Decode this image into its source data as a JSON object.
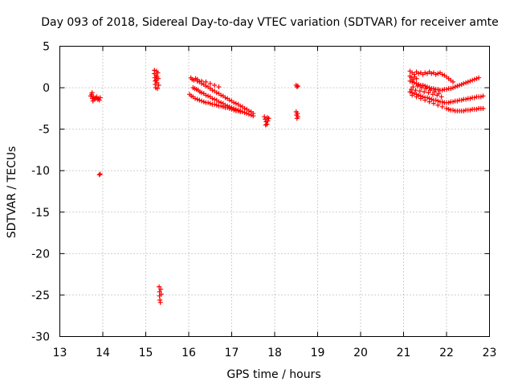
{
  "chart_data": {
    "type": "scatter",
    "title": "Day 093 of 2018, Sidereal Day-to-day VTEC variation (SDTVAR) for receiver amte",
    "xlabel": "GPS time / hours",
    "ylabel": "SDTVAR / TECUs",
    "xlim": [
      13,
      23
    ],
    "ylim": [
      -30,
      5
    ],
    "xticks": [
      "13",
      "14",
      "15",
      "16",
      "17",
      "18",
      "19",
      "20",
      "21",
      "22",
      "23"
    ],
    "yticks": [
      "5",
      "0",
      "-5",
      "-10",
      "-15",
      "-20",
      "-25",
      "-30"
    ],
    "grid": true,
    "marker": "plus",
    "color": "#ff0000",
    "series": [
      {
        "name": "SDTVAR",
        "points": [
          [
            13.72,
            -1.0
          ],
          [
            13.74,
            -0.8
          ],
          [
            13.76,
            -1.3
          ],
          [
            13.78,
            -1.1
          ],
          [
            13.8,
            -1.4
          ],
          [
            13.82,
            -1.2
          ],
          [
            13.84,
            -1.3
          ],
          [
            13.86,
            -1.1
          ],
          [
            13.88,
            -1.4
          ],
          [
            13.9,
            -1.3
          ],
          [
            13.92,
            -1.5
          ],
          [
            13.94,
            -1.2
          ],
          [
            13.75,
            -0.6
          ],
          [
            13.77,
            -1.6
          ],
          [
            13.92,
            -10.5
          ],
          [
            13.94,
            -10.4
          ],
          [
            15.2,
            2.1
          ],
          [
            15.2,
            1.7
          ],
          [
            15.21,
            1.2
          ],
          [
            15.22,
            0.8
          ],
          [
            15.22,
            0.4
          ],
          [
            15.23,
            0.0
          ],
          [
            15.24,
            0.9
          ],
          [
            15.24,
            1.5
          ],
          [
            15.25,
            2.0
          ],
          [
            15.26,
            1.3
          ],
          [
            15.26,
            0.6
          ],
          [
            15.27,
            -0.1
          ],
          [
            15.28,
            1.8
          ],
          [
            15.29,
            1.1
          ],
          [
            15.3,
            0.3
          ],
          [
            15.31,
            -24.0
          ],
          [
            15.32,
            -24.6
          ],
          [
            15.32,
            -25.1
          ],
          [
            15.33,
            -25.6
          ],
          [
            15.34,
            -25.9
          ],
          [
            15.35,
            -24.3
          ],
          [
            15.36,
            -24.9
          ],
          [
            16.05,
            1.2
          ],
          [
            16.08,
            1.0
          ],
          [
            16.12,
            0.9
          ],
          [
            16.16,
            1.1
          ],
          [
            16.2,
            0.8
          ],
          [
            16.25,
            0.7
          ],
          [
            16.3,
            0.5
          ],
          [
            16.35,
            0.4
          ],
          [
            16.4,
            0.2
          ],
          [
            16.45,
            0.1
          ],
          [
            16.5,
            -0.1
          ],
          [
            16.55,
            -0.3
          ],
          [
            16.6,
            -0.4
          ],
          [
            16.65,
            -0.6
          ],
          [
            16.7,
            -0.7
          ],
          [
            16.75,
            -0.9
          ],
          [
            16.8,
            -1.0
          ],
          [
            16.85,
            -1.2
          ],
          [
            16.9,
            -1.3
          ],
          [
            16.95,
            -1.5
          ],
          [
            17.0,
            -1.6
          ],
          [
            17.05,
            -1.8
          ],
          [
            17.1,
            -1.9
          ],
          [
            17.15,
            -2.0
          ],
          [
            17.2,
            -2.2
          ],
          [
            17.25,
            -2.3
          ],
          [
            17.3,
            -2.5
          ],
          [
            17.35,
            -2.6
          ],
          [
            17.4,
            -2.8
          ],
          [
            17.45,
            -2.9
          ],
          [
            17.5,
            -3.1
          ],
          [
            16.1,
            0.0
          ],
          [
            16.14,
            -0.1
          ],
          [
            16.18,
            -0.2
          ],
          [
            16.22,
            -0.3
          ],
          [
            16.26,
            -0.5
          ],
          [
            16.3,
            -0.6
          ],
          [
            16.35,
            -0.7
          ],
          [
            16.4,
            -0.9
          ],
          [
            16.45,
            -1.0
          ],
          [
            16.5,
            -1.1
          ],
          [
            16.55,
            -1.3
          ],
          [
            16.6,
            -1.4
          ],
          [
            16.65,
            -1.5
          ],
          [
            16.7,
            -1.7
          ],
          [
            16.75,
            -1.8
          ],
          [
            16.8,
            -1.9
          ],
          [
            16.85,
            -2.1
          ],
          [
            16.9,
            -2.2
          ],
          [
            16.95,
            -2.3
          ],
          [
            17.0,
            -2.4
          ],
          [
            17.05,
            -2.5
          ],
          [
            17.1,
            -2.6
          ],
          [
            17.15,
            -2.7
          ],
          [
            17.2,
            -2.8
          ],
          [
            17.25,
            -2.9
          ],
          [
            17.3,
            -3.0
          ],
          [
            17.35,
            -3.1
          ],
          [
            17.4,
            -3.2
          ],
          [
            17.45,
            -3.3
          ],
          [
            17.5,
            -3.4
          ],
          [
            16.02,
            -0.8
          ],
          [
            16.06,
            -1.0
          ],
          [
            16.1,
            -1.1
          ],
          [
            16.15,
            -1.3
          ],
          [
            16.2,
            -1.4
          ],
          [
            16.25,
            -1.5
          ],
          [
            16.3,
            -1.6
          ],
          [
            16.35,
            -1.7
          ],
          [
            16.4,
            -1.8
          ],
          [
            16.45,
            -1.8
          ],
          [
            16.5,
            -1.9
          ],
          [
            16.55,
            -2.0
          ],
          [
            16.6,
            -2.0
          ],
          [
            16.65,
            -2.1
          ],
          [
            16.7,
            -2.2
          ],
          [
            16.75,
            -2.2
          ],
          [
            16.8,
            -2.3
          ],
          [
            16.85,
            -2.4
          ],
          [
            16.9,
            -2.4
          ],
          [
            16.95,
            -2.5
          ],
          [
            17.0,
            -2.6
          ],
          [
            17.05,
            -2.7
          ],
          [
            17.1,
            -2.8
          ],
          [
            17.15,
            -2.8
          ],
          [
            17.2,
            -2.9
          ],
          [
            16.2,
            1.0
          ],
          [
            16.3,
            0.8
          ],
          [
            16.4,
            0.7
          ],
          [
            16.5,
            0.5
          ],
          [
            16.6,
            0.3
          ],
          [
            16.7,
            0.1
          ],
          [
            17.76,
            -3.5
          ],
          [
            17.78,
            -3.8
          ],
          [
            17.8,
            -4.1
          ],
          [
            17.82,
            -4.4
          ],
          [
            17.84,
            -4.0
          ],
          [
            17.86,
            -3.7
          ],
          [
            17.79,
            -4.5
          ],
          [
            17.83,
            -3.6
          ],
          [
            18.5,
            0.3
          ],
          [
            18.52,
            0.1
          ],
          [
            18.54,
            0.2
          ],
          [
            18.5,
            -2.9
          ],
          [
            18.51,
            -3.3
          ],
          [
            18.52,
            -3.7
          ],
          [
            18.53,
            -3.1
          ],
          [
            18.54,
            -3.5
          ],
          [
            21.15,
            2.0
          ],
          [
            21.2,
            1.8
          ],
          [
            21.25,
            1.6
          ],
          [
            21.3,
            1.9
          ],
          [
            21.35,
            1.7
          ],
          [
            21.4,
            1.8
          ],
          [
            21.45,
            1.6
          ],
          [
            21.5,
            1.8
          ],
          [
            21.55,
            1.7
          ],
          [
            21.6,
            1.9
          ],
          [
            21.65,
            1.7
          ],
          [
            21.7,
            1.8
          ],
          [
            21.75,
            1.6
          ],
          [
            21.8,
            1.7
          ],
          [
            21.85,
            1.8
          ],
          [
            21.9,
            1.6
          ],
          [
            21.95,
            1.5
          ],
          [
            22.0,
            1.3
          ],
          [
            22.05,
            1.1
          ],
          [
            22.1,
            0.9
          ],
          [
            22.15,
            0.7
          ],
          [
            21.15,
            0.8
          ],
          [
            21.2,
            0.7
          ],
          [
            21.25,
            0.6
          ],
          [
            21.3,
            0.5
          ],
          [
            21.35,
            0.4
          ],
          [
            21.4,
            0.3
          ],
          [
            21.45,
            0.3
          ],
          [
            21.5,
            0.2
          ],
          [
            21.55,
            0.1
          ],
          [
            21.6,
            0.0
          ],
          [
            21.65,
            -0.1
          ],
          [
            21.7,
            -0.1
          ],
          [
            21.75,
            -0.2
          ],
          [
            21.8,
            -0.2
          ],
          [
            21.85,
            -0.3
          ],
          [
            21.9,
            -0.3
          ],
          [
            21.95,
            -0.2
          ],
          [
            22.0,
            -0.2
          ],
          [
            22.05,
            -0.1
          ],
          [
            22.1,
            -0.1
          ],
          [
            22.15,
            0.0
          ],
          [
            22.2,
            0.1
          ],
          [
            22.25,
            0.2
          ],
          [
            22.3,
            0.3
          ],
          [
            22.35,
            0.4
          ],
          [
            22.4,
            0.5
          ],
          [
            22.45,
            0.6
          ],
          [
            22.5,
            0.7
          ],
          [
            22.55,
            0.8
          ],
          [
            22.6,
            0.9
          ],
          [
            22.65,
            1.0
          ],
          [
            22.7,
            1.1
          ],
          [
            22.75,
            1.2
          ],
          [
            21.15,
            -0.5
          ],
          [
            21.2,
            -0.6
          ],
          [
            21.25,
            -0.7
          ],
          [
            21.3,
            -0.8
          ],
          [
            21.35,
            -0.9
          ],
          [
            21.4,
            -1.0
          ],
          [
            21.45,
            -1.1
          ],
          [
            21.5,
            -1.2
          ],
          [
            21.55,
            -1.2
          ],
          [
            21.6,
            -1.3
          ],
          [
            21.65,
            -1.4
          ],
          [
            21.7,
            -1.5
          ],
          [
            21.75,
            -1.5
          ],
          [
            21.8,
            -1.6
          ],
          [
            21.85,
            -1.7
          ],
          [
            21.9,
            -1.7
          ],
          [
            21.95,
            -1.8
          ],
          [
            22.0,
            -1.8
          ],
          [
            22.05,
            -1.8
          ],
          [
            22.1,
            -1.7
          ],
          [
            22.15,
            -1.7
          ],
          [
            22.2,
            -1.6
          ],
          [
            22.25,
            -1.6
          ],
          [
            22.3,
            -1.5
          ],
          [
            22.35,
            -1.5
          ],
          [
            22.4,
            -1.4
          ],
          [
            22.45,
            -1.4
          ],
          [
            22.5,
            -1.3
          ],
          [
            22.55,
            -1.3
          ],
          [
            22.6,
            -1.2
          ],
          [
            22.65,
            -1.2
          ],
          [
            22.7,
            -1.1
          ],
          [
            22.75,
            -1.1
          ],
          [
            22.8,
            -1.1
          ],
          [
            22.85,
            -1.0
          ],
          [
            21.2,
            -0.9
          ],
          [
            21.3,
            -1.1
          ],
          [
            21.4,
            -1.3
          ],
          [
            21.5,
            -1.5
          ],
          [
            21.6,
            -1.7
          ],
          [
            21.7,
            -1.9
          ],
          [
            21.8,
            -2.1
          ],
          [
            21.9,
            -2.3
          ],
          [
            22.0,
            -2.5
          ],
          [
            22.05,
            -2.6
          ],
          [
            22.1,
            -2.7
          ],
          [
            22.15,
            -2.7
          ],
          [
            22.2,
            -2.8
          ],
          [
            22.25,
            -2.8
          ],
          [
            22.3,
            -2.8
          ],
          [
            22.35,
            -2.8
          ],
          [
            22.4,
            -2.8
          ],
          [
            22.45,
            -2.7
          ],
          [
            22.5,
            -2.7
          ],
          [
            22.55,
            -2.7
          ],
          [
            22.6,
            -2.6
          ],
          [
            22.65,
            -2.6
          ],
          [
            22.7,
            -2.6
          ],
          [
            22.75,
            -2.5
          ],
          [
            22.8,
            -2.5
          ],
          [
            22.85,
            -2.5
          ],
          [
            21.18,
            -0.2
          ],
          [
            21.22,
            0.1
          ],
          [
            21.28,
            -0.3
          ],
          [
            21.33,
            0.2
          ],
          [
            21.38,
            -0.4
          ],
          [
            21.42,
            0.0
          ],
          [
            21.48,
            -0.5
          ],
          [
            21.52,
            -0.1
          ],
          [
            21.58,
            -0.6
          ],
          [
            21.62,
            -0.3
          ],
          [
            21.68,
            -0.8
          ],
          [
            21.72,
            -0.5
          ],
          [
            21.78,
            -0.9
          ],
          [
            21.82,
            -0.7
          ],
          [
            21.88,
            -1.1
          ],
          [
            21.15,
            1.4
          ],
          [
            21.18,
            1.2
          ],
          [
            21.22,
            1.0
          ],
          [
            21.26,
            1.3
          ],
          [
            21.3,
            1.1
          ]
        ]
      }
    ]
  }
}
